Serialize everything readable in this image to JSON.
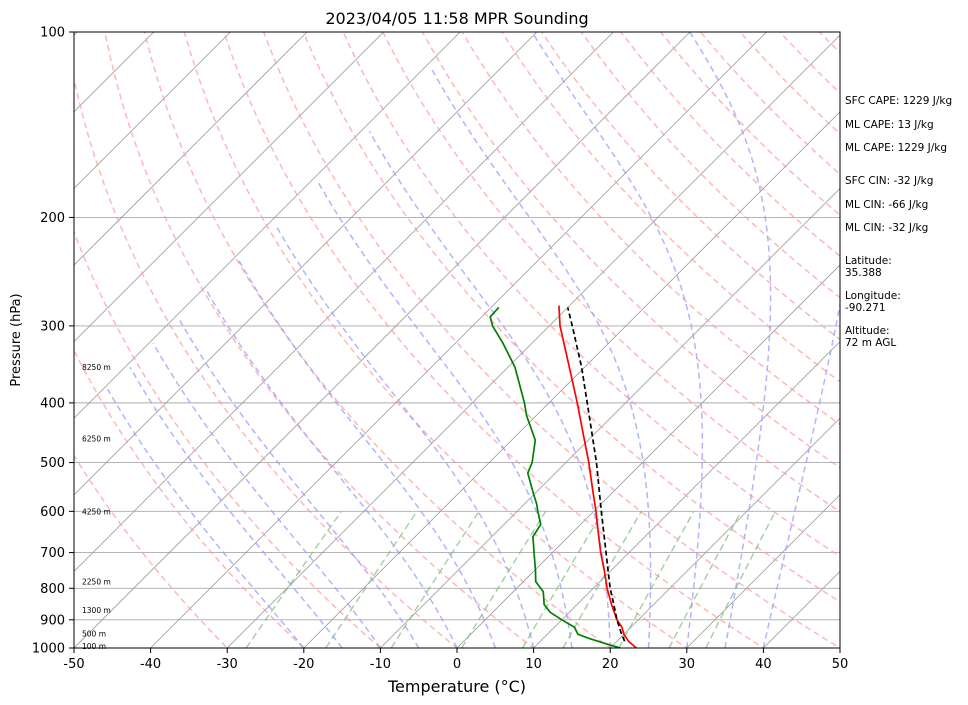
{
  "chart_data": {
    "type": "line",
    "title": "2023/04/05 11:58 MPR Sounding",
    "xlabel": "Temperature (°C)",
    "ylabel": "Pressure (hPa)",
    "xlim": [
      -50,
      50
    ],
    "ylim": [
      1000,
      100
    ],
    "y_scale": "log",
    "x_ticks": [
      -50,
      -40,
      -30,
      -20,
      -10,
      0,
      10,
      20,
      30,
      40,
      50
    ],
    "y_ticks": [
      100,
      200,
      300,
      400,
      500,
      600,
      700,
      800,
      900,
      1000
    ],
    "grid": true,
    "skew_t": true,
    "series": [
      {
        "key": "temperature",
        "color": "#ff0000",
        "style": "solid",
        "points": [
          [
            1000,
            23.4
          ],
          [
            975,
            21.5
          ],
          [
            950,
            20.0
          ],
          [
            925,
            18.8
          ],
          [
            900,
            17.2
          ],
          [
            850,
            14.5
          ],
          [
            800,
            11.8
          ],
          [
            750,
            9.2
          ],
          [
            700,
            6.3
          ],
          [
            650,
            3.4
          ],
          [
            600,
            0.3
          ],
          [
            550,
            -3.2
          ],
          [
            500,
            -7.0
          ],
          [
            450,
            -11.4
          ],
          [
            400,
            -16.3
          ],
          [
            350,
            -22.0
          ],
          [
            300,
            -28.6
          ],
          [
            278,
            -31.4
          ]
        ]
      },
      {
        "key": "dewpoint",
        "color": "#008000",
        "style": "solid",
        "points": [
          [
            1000,
            21.3
          ],
          [
            985,
            19.0
          ],
          [
            965,
            16.0
          ],
          [
            950,
            14.0
          ],
          [
            925,
            12.6
          ],
          [
            900,
            10.0
          ],
          [
            875,
            7.5
          ],
          [
            850,
            5.7
          ],
          [
            810,
            3.9
          ],
          [
            780,
            1.6
          ],
          [
            750,
            0.2
          ],
          [
            700,
            -2.4
          ],
          [
            660,
            -4.6
          ],
          [
            630,
            -5.2
          ],
          [
            600,
            -7.3
          ],
          [
            585,
            -8.3
          ],
          [
            560,
            -10.3
          ],
          [
            520,
            -13.6
          ],
          [
            500,
            -14.4
          ],
          [
            460,
            -16.9
          ],
          [
            420,
            -21.2
          ],
          [
            400,
            -23.2
          ],
          [
            350,
            -29.1
          ],
          [
            320,
            -33.8
          ],
          [
            300,
            -37.4
          ],
          [
            290,
            -38.9
          ],
          [
            280,
            -39.0
          ]
        ]
      },
      {
        "key": "parcel",
        "color": "#000000",
        "style": "dashed",
        "points": [
          [
            975,
            21.0
          ],
          [
            950,
            19.7
          ],
          [
            900,
            17.2
          ],
          [
            850,
            14.8
          ],
          [
            800,
            12.2
          ],
          [
            700,
            7.0
          ],
          [
            600,
            1.0
          ],
          [
            500,
            -6.0
          ],
          [
            400,
            -15.0
          ],
          [
            350,
            -20.4
          ],
          [
            300,
            -27.0
          ],
          [
            280,
            -30.0
          ]
        ]
      }
    ],
    "annotations": {
      "sfc_cape": "SFC CAPE: 1229 J/kg",
      "ml_cape_1": "ML CAPE: 13 J/kg",
      "ml_cape_2": "ML CAPE: 1229 J/kg",
      "sfc_cin": "SFC CIN: -32 J/kg",
      "ml_cin_1": "ML CIN: -66 J/kg",
      "ml_cin_2": "ML CIN: -32 J/kg",
      "latitude_label": "Latitude:",
      "latitude_value": "35.388",
      "longitude_label": "Longitude:",
      "longitude_value": "-90.271",
      "altitude_label": "Altitude:",
      "altitude_value": "72 m AGL"
    },
    "height_labels": [
      {
        "text": "8250 m",
        "p": 350
      },
      {
        "text": "6250 m",
        "p": 457
      },
      {
        "text": "4250 m",
        "p": 600
      },
      {
        "text": "2250 m",
        "p": 780
      },
      {
        "text": "1300 m",
        "p": 868
      },
      {
        "text": "500 m",
        "p": 948
      },
      {
        "text": "100 m",
        "p": 992
      }
    ],
    "colors": {
      "dry_adiabat": "#ff9999",
      "moist_adiabat": "#9999ff",
      "mixing_ratio": "#77bb77",
      "isotherm": "#999999",
      "isobar": "#aaaaaa"
    }
  }
}
